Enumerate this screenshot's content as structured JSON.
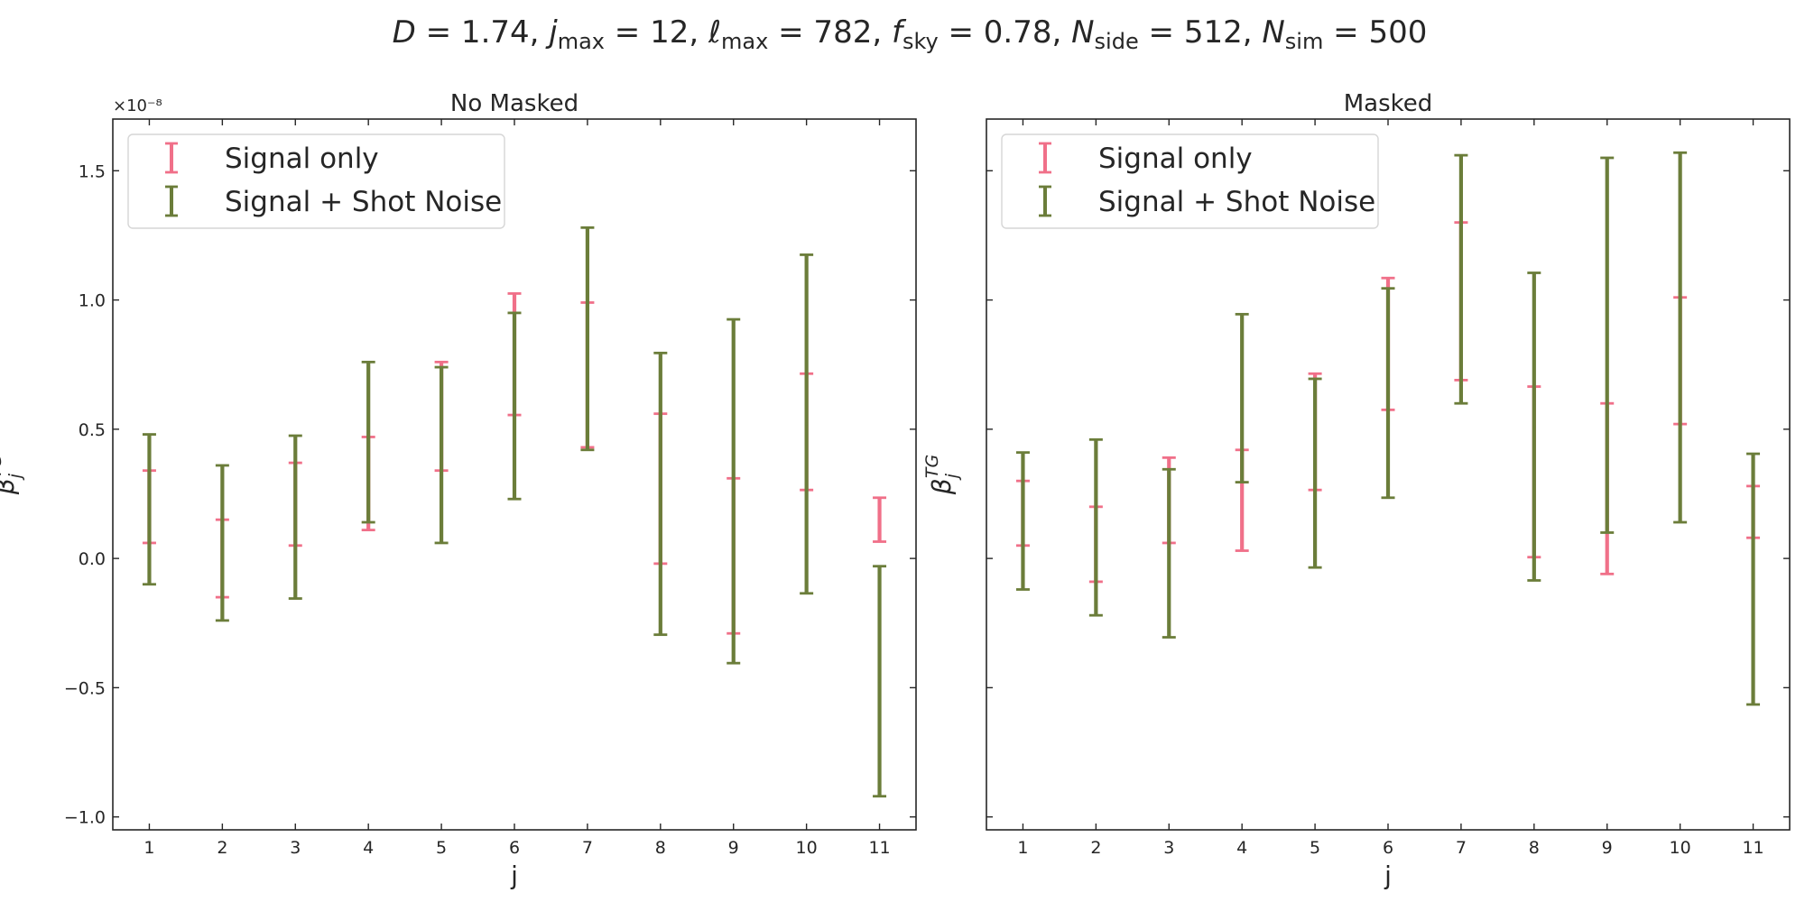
{
  "figure": {
    "suptitle_parts": [
      {
        "text": "D",
        "italic": true
      },
      {
        "text": " = 1.74,  "
      },
      {
        "text": "j",
        "italic": true
      },
      {
        "text": "max",
        "sub": true
      },
      {
        "text": " = 12,  "
      },
      {
        "text": "ℓ",
        "italic": true
      },
      {
        "text": "max",
        "sub": true
      },
      {
        "text": " = 782, "
      },
      {
        "text": "f",
        "italic": true
      },
      {
        "text": "sky",
        "sub": true
      },
      {
        "text": " = 0.78,  "
      },
      {
        "text": "N",
        "italic": true
      },
      {
        "text": "side",
        "sub": true
      },
      {
        "text": " = 512, "
      },
      {
        "text": "N",
        "italic": true
      },
      {
        "text": "sim",
        "sub": true
      },
      {
        "text": " = 500"
      }
    ]
  },
  "colors": {
    "signal_only": "#f07089",
    "signal_shot_noise": "#6b7d3a",
    "axes": "#262626",
    "legend_border": "#d6d6d6"
  },
  "chart_data": [
    {
      "type": "errorbar",
      "title": "No Masked",
      "xlabel": "j",
      "ylabel": "β_j^{TG}",
      "y_offset_text": "×10⁻⁸",
      "x": [
        1,
        2,
        3,
        4,
        5,
        6,
        7,
        8,
        9,
        10,
        11
      ],
      "xlim": [
        0.5,
        11.5
      ],
      "ylim": [
        -1.05,
        1.7
      ],
      "yticks": [
        -1.0,
        -0.5,
        0.0,
        0.5,
        1.0,
        1.5
      ],
      "ytick_labels": [
        "−1.0",
        "−0.5",
        "0.0",
        "0.5",
        "1.0",
        "1.5"
      ],
      "xtick_labels": [
        "1",
        "2",
        "3",
        "4",
        "5",
        "6",
        "7",
        "8",
        "9",
        "10",
        "11"
      ],
      "legend_position": "upper-left",
      "series": [
        {
          "name": "Signal only",
          "y": [
            0.2,
            0.0,
            0.21,
            0.29,
            0.55,
            0.79,
            0.71,
            0.27,
            0.01,
            0.49,
            0.15
          ],
          "yerr": [
            0.14,
            0.15,
            0.16,
            0.18,
            0.21,
            0.235,
            0.28,
            0.29,
            0.3,
            0.225,
            0.085
          ]
        },
        {
          "name": "Signal + Shot Noise",
          "y": [
            0.19,
            0.06,
            0.16,
            0.45,
            0.4,
            0.59,
            0.85,
            0.25,
            0.26,
            0.52,
            -0.475
          ],
          "yerr": [
            0.29,
            0.3,
            0.315,
            0.31,
            0.34,
            0.36,
            0.43,
            0.545,
            0.665,
            0.655,
            0.445
          ]
        }
      ]
    },
    {
      "type": "errorbar",
      "title": "Masked",
      "xlabel": "j",
      "ylabel": "β_j^{TG}",
      "x": [
        1,
        2,
        3,
        4,
        5,
        6,
        7,
        8,
        9,
        10,
        11
      ],
      "xlim": [
        0.5,
        11.5
      ],
      "ylim": [
        -1.05,
        1.7
      ],
      "yticks": [
        -1.0,
        -0.5,
        0.0,
        0.5,
        1.0,
        1.5
      ],
      "xtick_labels": [
        "1",
        "2",
        "3",
        "4",
        "5",
        "6",
        "7",
        "8",
        "9",
        "10",
        "11"
      ],
      "legend_position": "upper-left",
      "series": [
        {
          "name": "Signal only",
          "y": [
            0.175,
            0.055,
            0.225,
            0.225,
            0.49,
            0.83,
            0.995,
            0.335,
            0.27,
            0.765,
            0.18
          ],
          "yerr": [
            0.125,
            0.145,
            0.165,
            0.195,
            0.225,
            0.255,
            0.305,
            0.33,
            0.33,
            0.245,
            0.1
          ]
        },
        {
          "name": "Signal + Shot Noise",
          "y": [
            0.145,
            0.12,
            0.02,
            0.62,
            0.33,
            0.64,
            1.08,
            0.51,
            0.825,
            0.855,
            -0.08
          ],
          "yerr": [
            0.265,
            0.34,
            0.325,
            0.325,
            0.365,
            0.405,
            0.48,
            0.595,
            0.725,
            0.715,
            0.485
          ]
        }
      ]
    }
  ]
}
